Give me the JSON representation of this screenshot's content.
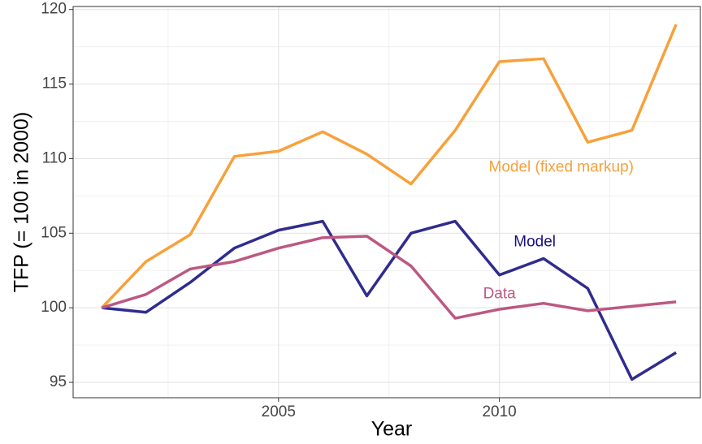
{
  "chart_data": {
    "type": "line",
    "x_label": "Year",
    "y_label": "TFP (= 100 in 2000)",
    "x": [
      2001,
      2002,
      2003,
      2004,
      2005,
      2006,
      2007,
      2008,
      2009,
      2010,
      2011,
      2012,
      2013,
      2014
    ],
    "series": [
      {
        "name": "Model (fixed markup)",
        "color": "#f7a13a",
        "values": [
          100,
          103.1,
          104.9,
          110.15,
          110.5,
          111.8,
          110.3,
          108.3,
          111.9,
          116.5,
          116.7,
          111.1,
          111.9,
          119
        ]
      },
      {
        "name": "Model",
        "color": "#302c8e",
        "values": [
          100,
          99.7,
          101.7,
          104.0,
          105.2,
          105.8,
          100.8,
          105.0,
          105.8,
          102.2,
          103.3,
          101.3,
          95.2,
          97.0
        ]
      },
      {
        "name": "Data",
        "color": "#bc5882",
        "values": [
          100,
          100.9,
          102.6,
          103.1,
          104.0,
          104.7,
          104.8,
          102.8,
          99.3,
          99.9,
          100.3,
          99.8,
          100.1,
          100.4
        ]
      }
    ],
    "annotations": [
      {
        "text": "Model (fixed markup)",
        "x": 2011.4,
        "y": 109.4,
        "color": "#f7a13a"
      },
      {
        "text": "Model",
        "x": 2010.8,
        "y": 104.4,
        "color": "#1a1080"
      },
      {
        "text": "Data",
        "x": 2010.0,
        "y": 100.9,
        "color": "#bc5882"
      }
    ],
    "xlim": [
      2000.35,
      2014.55
    ],
    "xticks": [
      2005,
      2010
    ],
    "x_minor_ticks": [
      2002.5,
      2007.5,
      2012.5
    ],
    "ylim": [
      93.97,
      120.2
    ],
    "yticks": [
      95,
      100,
      105,
      110,
      115,
      120
    ],
    "y_minor_ticks": [
      97.5,
      102.5,
      107.5,
      112.5,
      117.5
    ],
    "grid": true
  }
}
